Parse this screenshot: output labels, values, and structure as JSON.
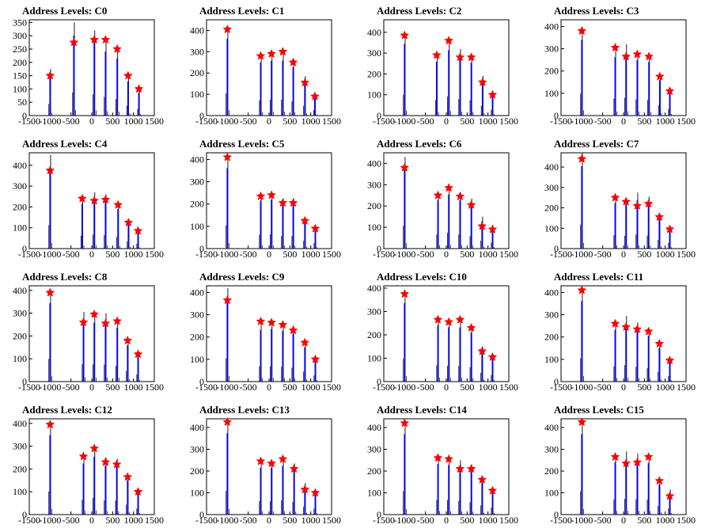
{
  "title_prefix": "Address Levels: ",
  "chart_data": [
    {
      "type": "bar",
      "title": "Address Levels: C0",
      "xlim": [
        -1500,
        1500
      ],
      "ylim": [
        0,
        360
      ],
      "yticks": [
        0,
        50,
        100,
        150,
        200,
        250,
        300,
        350
      ],
      "xticks": [
        -1500,
        -1000,
        -500,
        0,
        500,
        1000,
        1500
      ],
      "bars": [
        [
          -1000,
          175
        ],
        [
          -430,
          350
        ],
        [
          60,
          320
        ],
        [
          330,
          280
        ],
        [
          610,
          250
        ],
        [
          870,
          150
        ],
        [
          1130,
          100
        ]
      ],
      "stars": [
        [
          -1000,
          150
        ],
        [
          -430,
          275
        ],
        [
          60,
          285
        ],
        [
          330,
          285
        ],
        [
          610,
          250
        ],
        [
          870,
          150
        ],
        [
          1130,
          100
        ]
      ]
    },
    {
      "type": "bar",
      "title": "Address Levels: C1",
      "xlim": [
        -1500,
        1500
      ],
      "ylim": [
        0,
        450
      ],
      "yticks": [
        0,
        100,
        200,
        300,
        400
      ],
      "xticks": [
        -1500,
        -1000,
        -500,
        0,
        500,
        1000,
        1500
      ],
      "bars": [
        [
          -1000,
          420
        ],
        [
          -200,
          290
        ],
        [
          60,
          300
        ],
        [
          330,
          300
        ],
        [
          580,
          265
        ],
        [
          860,
          185
        ],
        [
          1100,
          105
        ]
      ],
      "stars": [
        [
          -1000,
          405
        ],
        [
          -200,
          280
        ],
        [
          60,
          290
        ],
        [
          330,
          300
        ],
        [
          580,
          250
        ],
        [
          860,
          155
        ],
        [
          1100,
          90
        ]
      ]
    },
    {
      "type": "bar",
      "title": "Address Levels: C2",
      "xlim": [
        -1500,
        1500
      ],
      "ylim": [
        0,
        460
      ],
      "yticks": [
        0,
        100,
        200,
        300,
        400
      ],
      "xticks": [
        -1500,
        -1000,
        -500,
        0,
        500,
        1000,
        1500
      ],
      "bars": [
        [
          -1000,
          400
        ],
        [
          -230,
          300
        ],
        [
          60,
          365
        ],
        [
          330,
          320
        ],
        [
          600,
          295
        ],
        [
          870,
          190
        ],
        [
          1110,
          115
        ]
      ],
      "stars": [
        [
          -1000,
          385
        ],
        [
          -230,
          290
        ],
        [
          60,
          360
        ],
        [
          330,
          280
        ],
        [
          600,
          280
        ],
        [
          870,
          160
        ],
        [
          1110,
          100
        ]
      ]
    },
    {
      "type": "bar",
      "title": "Address Levels: C3",
      "xlim": [
        -1500,
        1500
      ],
      "ylim": [
        0,
        430
      ],
      "yticks": [
        0,
        100,
        200,
        300,
        400
      ],
      "xticks": [
        -1500,
        -1000,
        -500,
        0,
        500,
        1000,
        1500
      ],
      "bars": [
        [
          -1000,
          395
        ],
        [
          -200,
          305
        ],
        [
          60,
          320
        ],
        [
          330,
          290
        ],
        [
          610,
          280
        ],
        [
          870,
          185
        ],
        [
          1110,
          120
        ]
      ],
      "stars": [
        [
          -1000,
          380
        ],
        [
          -200,
          305
        ],
        [
          60,
          265
        ],
        [
          330,
          275
        ],
        [
          610,
          265
        ],
        [
          870,
          175
        ],
        [
          1110,
          110
        ]
      ]
    },
    {
      "type": "bar",
      "title": "Address Levels: C4",
      "xlim": [
        -1500,
        1500
      ],
      "ylim": [
        0,
        460
      ],
      "yticks": [
        0,
        100,
        200,
        300,
        400
      ],
      "xticks": [
        -1500,
        -1000,
        -500,
        0,
        500,
        1000,
        1500
      ],
      "bars": [
        [
          -1000,
          450
        ],
        [
          -230,
          250
        ],
        [
          60,
          270
        ],
        [
          330,
          260
        ],
        [
          630,
          220
        ],
        [
          880,
          140
        ],
        [
          1110,
          95
        ]
      ],
      "stars": [
        [
          -1000,
          375
        ],
        [
          -230,
          240
        ],
        [
          60,
          230
        ],
        [
          330,
          235
        ],
        [
          630,
          210
        ],
        [
          880,
          125
        ],
        [
          1110,
          85
        ]
      ]
    },
    {
      "type": "bar",
      "title": "Address Levels: C5",
      "xlim": [
        -1500,
        1500
      ],
      "ylim": [
        0,
        430
      ],
      "yticks": [
        0,
        100,
        200,
        300,
        400
      ],
      "xticks": [
        -1500,
        -1000,
        -500,
        0,
        500,
        1000,
        1500
      ],
      "bars": [
        [
          -1000,
          420
        ],
        [
          -200,
          250
        ],
        [
          60,
          255
        ],
        [
          330,
          225
        ],
        [
          580,
          225
        ],
        [
          860,
          140
        ],
        [
          1110,
          100
        ]
      ],
      "stars": [
        [
          -1000,
          410
        ],
        [
          -200,
          235
        ],
        [
          60,
          240
        ],
        [
          330,
          205
        ],
        [
          580,
          205
        ],
        [
          860,
          125
        ],
        [
          1110,
          90
        ]
      ]
    },
    {
      "type": "bar",
      "title": "Address Levels: C6",
      "xlim": [
        -1500,
        1500
      ],
      "ylim": [
        0,
        450
      ],
      "yticks": [
        0,
        100,
        200,
        300,
        400
      ],
      "xticks": [
        -1500,
        -1000,
        -500,
        0,
        500,
        1000,
        1500
      ],
      "bars": [
        [
          -1000,
          430
        ],
        [
          -200,
          265
        ],
        [
          60,
          295
        ],
        [
          330,
          265
        ],
        [
          600,
          235
        ],
        [
          860,
          150
        ],
        [
          1110,
          110
        ]
      ],
      "stars": [
        [
          -1000,
          380
        ],
        [
          -200,
          250
        ],
        [
          60,
          285
        ],
        [
          330,
          245
        ],
        [
          600,
          205
        ],
        [
          860,
          105
        ],
        [
          1110,
          90
        ]
      ]
    },
    {
      "type": "bar",
      "title": "Address Levels: C7",
      "xlim": [
        -1500,
        1500
      ],
      "ylim": [
        0,
        470
      ],
      "yticks": [
        0,
        100,
        200,
        300,
        400
      ],
      "xticks": [
        -1500,
        -1000,
        -500,
        0,
        500,
        1000,
        1500
      ],
      "bars": [
        [
          -1000,
          470
        ],
        [
          -200,
          260
        ],
        [
          60,
          250
        ],
        [
          330,
          275
        ],
        [
          600,
          255
        ],
        [
          860,
          170
        ],
        [
          1110,
          110
        ]
      ],
      "stars": [
        [
          -1000,
          440
        ],
        [
          -200,
          250
        ],
        [
          60,
          230
        ],
        [
          330,
          210
        ],
        [
          600,
          220
        ],
        [
          860,
          155
        ],
        [
          1110,
          95
        ]
      ]
    },
    {
      "type": "bar",
      "title": "Address Levels: C8",
      "xlim": [
        -1500,
        1500
      ],
      "ylim": [
        0,
        420
      ],
      "yticks": [
        0,
        100,
        200,
        300,
        400
      ],
      "xticks": [
        -1500,
        -1000,
        -500,
        0,
        500,
        1000,
        1500
      ],
      "bars": [
        [
          -1000,
          400
        ],
        [
          -200,
          305
        ],
        [
          60,
          300
        ],
        [
          330,
          300
        ],
        [
          610,
          275
        ],
        [
          860,
          185
        ],
        [
          1110,
          125
        ]
      ],
      "stars": [
        [
          -1000,
          390
        ],
        [
          -200,
          260
        ],
        [
          60,
          295
        ],
        [
          330,
          255
        ],
        [
          610,
          265
        ],
        [
          860,
          180
        ],
        [
          1110,
          120
        ]
      ]
    },
    {
      "type": "bar",
      "title": "Address Levels: C9",
      "xlim": [
        -1500,
        1500
      ],
      "ylim": [
        0,
        430
      ],
      "yticks": [
        0,
        100,
        200,
        300,
        400
      ],
      "xticks": [
        -1500,
        -1000,
        -500,
        0,
        500,
        1000,
        1500
      ],
      "bars": [
        [
          -1000,
          420
        ],
        [
          -200,
          270
        ],
        [
          60,
          275
        ],
        [
          330,
          265
        ],
        [
          580,
          250
        ],
        [
          860,
          180
        ],
        [
          1110,
          110
        ]
      ],
      "stars": [
        [
          -1000,
          365
        ],
        [
          -200,
          270
        ],
        [
          60,
          265
        ],
        [
          330,
          255
        ],
        [
          580,
          230
        ],
        [
          860,
          175
        ],
        [
          1110,
          100
        ]
      ]
    },
    {
      "type": "bar",
      "title": "Address Levels: C10",
      "xlim": [
        -1500,
        1500
      ],
      "ylim": [
        0,
        410
      ],
      "yticks": [
        0,
        100,
        200,
        300,
        400
      ],
      "xticks": [
        -1500,
        -1000,
        -500,
        0,
        500,
        1000,
        1500
      ],
      "bars": [
        [
          -1000,
          390
        ],
        [
          -200,
          280
        ],
        [
          60,
          270
        ],
        [
          330,
          270
        ],
        [
          600,
          245
        ],
        [
          860,
          150
        ],
        [
          1110,
          110
        ]
      ],
      "stars": [
        [
          -1000,
          375
        ],
        [
          -200,
          265
        ],
        [
          60,
          255
        ],
        [
          330,
          265
        ],
        [
          600,
          230
        ],
        [
          860,
          130
        ],
        [
          1110,
          105
        ]
      ]
    },
    {
      "type": "bar",
      "title": "Address Levels: C11",
      "xlim": [
        -1500,
        1500
      ],
      "ylim": [
        0,
        430
      ],
      "yticks": [
        0,
        100,
        200,
        300,
        400
      ],
      "xticks": [
        -1500,
        -1000,
        -500,
        0,
        500,
        1000,
        1500
      ],
      "bars": [
        [
          -1000,
          420
        ],
        [
          -200,
          270
        ],
        [
          60,
          295
        ],
        [
          330,
          265
        ],
        [
          600,
          240
        ],
        [
          860,
          175
        ],
        [
          1110,
          100
        ]
      ],
      "stars": [
        [
          -1000,
          410
        ],
        [
          -200,
          260
        ],
        [
          60,
          245
        ],
        [
          330,
          235
        ],
        [
          600,
          225
        ],
        [
          860,
          170
        ],
        [
          1110,
          95
        ]
      ]
    },
    {
      "type": "bar",
      "title": "Address Levels: C12",
      "xlim": [
        -1500,
        1500
      ],
      "ylim": [
        0,
        420
      ],
      "yticks": [
        0,
        100,
        200,
        300,
        400
      ],
      "xticks": [
        -1500,
        -1000,
        -500,
        0,
        500,
        1000,
        1500
      ],
      "bars": [
        [
          -1000,
          405
        ],
        [
          -200,
          260
        ],
        [
          60,
          295
        ],
        [
          330,
          250
        ],
        [
          600,
          245
        ],
        [
          860,
          175
        ],
        [
          1110,
          105
        ]
      ],
      "stars": [
        [
          -1000,
          395
        ],
        [
          -200,
          255
        ],
        [
          60,
          290
        ],
        [
          330,
          230
        ],
        [
          600,
          220
        ],
        [
          860,
          165
        ],
        [
          1110,
          100
        ]
      ]
    },
    {
      "type": "bar",
      "title": "Address Levels: C13",
      "xlim": [
        -1500,
        1500
      ],
      "ylim": [
        0,
        440
      ],
      "yticks": [
        0,
        100,
        200,
        300,
        400
      ],
      "xticks": [
        -1500,
        -1000,
        -500,
        0,
        500,
        1000,
        1500
      ],
      "bars": [
        [
          -1000,
          435
        ],
        [
          -200,
          250
        ],
        [
          60,
          250
        ],
        [
          330,
          260
        ],
        [
          600,
          235
        ],
        [
          860,
          145
        ],
        [
          1110,
          110
        ]
      ],
      "stars": [
        [
          -1000,
          425
        ],
        [
          -200,
          245
        ],
        [
          60,
          235
        ],
        [
          330,
          255
        ],
        [
          600,
          210
        ],
        [
          860,
          115
        ],
        [
          1110,
          100
        ]
      ]
    },
    {
      "type": "bar",
      "title": "Address Levels: C14",
      "xlim": [
        -1500,
        1500
      ],
      "ylim": [
        0,
        440
      ],
      "yticks": [
        0,
        100,
        200,
        300,
        400
      ],
      "xticks": [
        -1500,
        -1000,
        -500,
        0,
        500,
        1000,
        1500
      ],
      "bars": [
        [
          -1000,
          430
        ],
        [
          -200,
          270
        ],
        [
          60,
          265
        ],
        [
          330,
          250
        ],
        [
          600,
          230
        ],
        [
          860,
          170
        ],
        [
          1110,
          125
        ]
      ],
      "stars": [
        [
          -1000,
          420
        ],
        [
          -200,
          260
        ],
        [
          60,
          255
        ],
        [
          330,
          210
        ],
        [
          600,
          210
        ],
        [
          860,
          160
        ],
        [
          1110,
          110
        ]
      ]
    },
    {
      "type": "bar",
      "title": "Address Levels: C15",
      "xlim": [
        -1500,
        1500
      ],
      "ylim": [
        0,
        440
      ],
      "yticks": [
        0,
        100,
        200,
        300,
        400
      ],
      "xticks": [
        -1500,
        -1000,
        -500,
        0,
        500,
        1000,
        1500
      ],
      "bars": [
        [
          -1000,
          430
        ],
        [
          -200,
          280
        ],
        [
          60,
          290
        ],
        [
          330,
          280
        ],
        [
          600,
          275
        ],
        [
          860,
          160
        ],
        [
          1110,
          115
        ]
      ],
      "stars": [
        [
          -1000,
          425
        ],
        [
          -200,
          265
        ],
        [
          60,
          235
        ],
        [
          330,
          240
        ],
        [
          600,
          265
        ],
        [
          860,
          155
        ],
        [
          1110,
          85
        ]
      ]
    }
  ],
  "colors": {
    "bar": "#0000ff",
    "outline": "#000000",
    "star": "#ff0000"
  }
}
